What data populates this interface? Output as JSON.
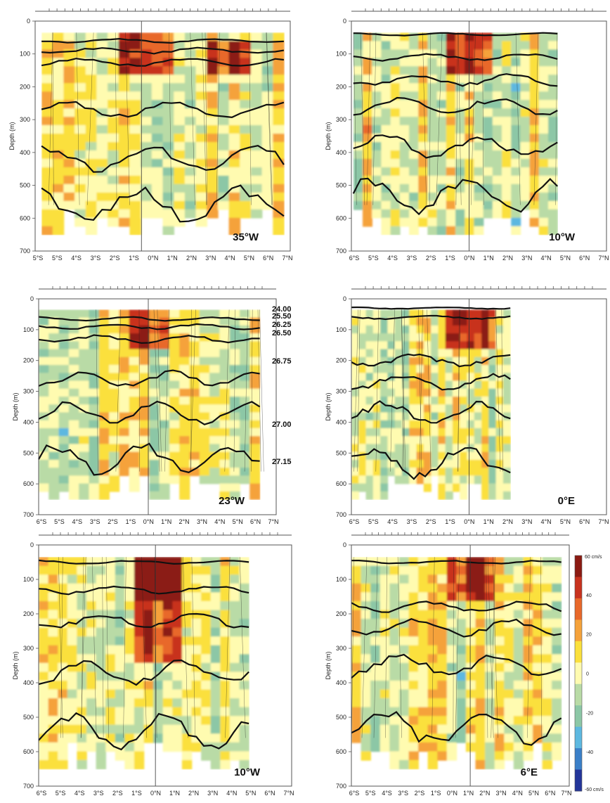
{
  "figure": {
    "y_axis_label": "Depth (m)",
    "colorbar": {
      "top_label": "60 cm/s",
      "bottom_label": "-60 cm/s",
      "tick_labels": [
        "40",
        "20",
        "0",
        "-20",
        "-40"
      ],
      "colors": [
        "#8b1a12",
        "#c8321e",
        "#e8682a",
        "#f5a23a",
        "#fbe03c",
        "#fffbb0",
        "#b9dba6",
        "#8cc7a6",
        "#5db8e0",
        "#3a7fc8",
        "#23359a"
      ]
    }
  },
  "chart_data": [
    {
      "type": "heatmap",
      "panel_label": "35°W",
      "ylabel": "Depth (m)",
      "y_ticks": [
        "0",
        "100",
        "200",
        "300",
        "400",
        "500",
        "600",
        "700"
      ],
      "ylim": [
        700,
        0
      ],
      "x_ticks": [
        "5°S",
        "5°S",
        "4°S",
        "3°S",
        "2°S",
        "1°S",
        "0°N",
        "1°N",
        "2°N",
        "3°N",
        "4°N",
        "5°N",
        "6°N",
        "7°N"
      ],
      "x_range_lat": [
        -5,
        7
      ],
      "data_lat_range": [
        -4.7,
        6.7
      ],
      "isopycnal_depths": [
        60,
        90,
        125,
        270,
        420,
        560
      ]
    },
    {
      "type": "heatmap",
      "panel_label": "10°W",
      "ylabel": "Depth (m)",
      "y_ticks": [
        "0",
        "100",
        "200",
        "300",
        "400",
        "500",
        "600",
        "700"
      ],
      "ylim": [
        700,
        0
      ],
      "x_ticks": [
        "6°S",
        "5°S",
        "4°S",
        "3°S",
        "2°S",
        "1°S",
        "0°N",
        "1°N",
        "2°N",
        "3°N",
        "4°N",
        "5°N",
        "6°N",
        "7°N"
      ],
      "x_range_lat": [
        -6,
        7
      ],
      "data_lat_range": [
        -5.9,
        4.5
      ],
      "isopycnal_depths": [
        40,
        110,
        180,
        260,
        380,
        530
      ]
    },
    {
      "type": "heatmap",
      "panel_label": "23°W",
      "ylabel": "Depth (m)",
      "y_ticks": [
        "0",
        "100",
        "200",
        "300",
        "400",
        "500",
        "600",
        "700"
      ],
      "ylim": [
        700,
        0
      ],
      "x_ticks": [
        "6°S",
        "5°S",
        "4°S",
        "3°S",
        "2°S",
        "1°S",
        "0°N",
        "1°N",
        "2°N",
        "3°N",
        "4°N",
        "5°N",
        "6°N",
        "7°N"
      ],
      "x_range_lat": [
        -6,
        7
      ],
      "data_lat_range": [
        -6,
        6.1
      ],
      "isopycnal_depths": [
        65,
        90,
        130,
        260,
        370,
        520
      ],
      "isopycnal_labels": [
        "24.00",
        "25.50",
        "26.25",
        "26.50",
        "26.75",
        "27.00",
        "27.15"
      ]
    },
    {
      "type": "heatmap",
      "panel_label": "0°E",
      "ylabel": "Depth (m)",
      "y_ticks": [
        "0",
        "100",
        "200",
        "300",
        "400",
        "500",
        "600",
        "700"
      ],
      "ylim": [
        700,
        0
      ],
      "x_ticks": [
        "6°S",
        "5°S",
        "4°S",
        "3°S",
        "2°S",
        "1°S",
        "0°N",
        "1°N",
        "2°N",
        "3°N",
        "4°N",
        "5°N",
        "6°N",
        "7°N"
      ],
      "x_range_lat": [
        -6,
        7
      ],
      "data_lat_range": [
        -6,
        2.1
      ],
      "isopycnal_depths": [
        30,
        60,
        200,
        270,
        370,
        530
      ]
    },
    {
      "type": "heatmap",
      "panel_label": "10°W",
      "ylabel": "Depth (m)",
      "y_ticks": [
        "0",
        "100",
        "200",
        "300",
        "400",
        "500",
        "600",
        "700"
      ],
      "ylim": [
        700,
        0
      ],
      "x_ticks": [
        "6°S",
        "5°S",
        "4°S",
        "3°S",
        "2°S",
        "1°S",
        "0°N",
        "1°N",
        "2°N",
        "3°N",
        "4°N",
        "5°N",
        "6°N",
        "7°N"
      ],
      "x_range_lat": [
        -6,
        7
      ],
      "data_lat_range": [
        -6,
        4.8
      ],
      "isopycnal_depths": [
        50,
        130,
        220,
        370,
        540
      ]
    },
    {
      "type": "heatmap",
      "panel_label": "6°E",
      "ylabel": "Depth (m)",
      "y_ticks": [
        "0",
        "100",
        "200",
        "300",
        "400",
        "500",
        "600",
        "700"
      ],
      "ylim": [
        700,
        0
      ],
      "x_ticks": [
        "6°S",
        "5°S",
        "4°S",
        "3°S",
        "2°S",
        "1°S",
        "0°N",
        "1°N",
        "2°N",
        "3°N",
        "4°N",
        "5°N",
        "6°N",
        "7°N"
      ],
      "x_range_lat": [
        -6,
        5
      ],
      "data_lat_range": [
        -6,
        4.6
      ],
      "isopycnal_depths": [
        50,
        180,
        240,
        350,
        530
      ]
    }
  ]
}
